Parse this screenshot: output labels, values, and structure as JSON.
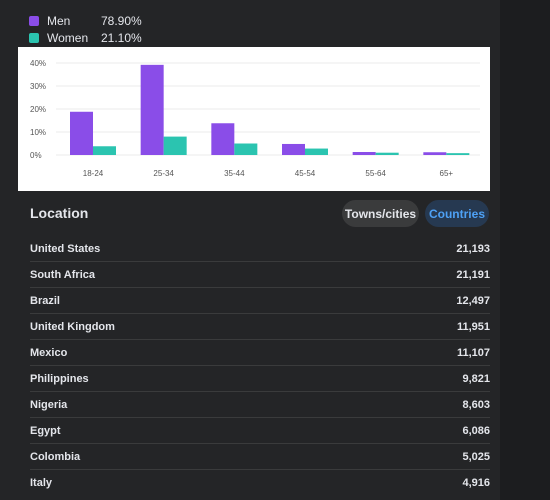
{
  "gender_legend": [
    {
      "label": "Men",
      "value": "78.90%",
      "color": "#8a4de8"
    },
    {
      "label": "Women",
      "value": "21.10%",
      "color": "#2bc4b0"
    }
  ],
  "chart_data": {
    "type": "bar",
    "categories": [
      "18-24",
      "25-34",
      "35-44",
      "45-54",
      "55-64",
      "65+"
    ],
    "series": [
      {
        "name": "Men",
        "color": "#8a4de8",
        "values": [
          18.8,
          39.2,
          13.8,
          4.8,
          1.3,
          1.2
        ]
      },
      {
        "name": "Women",
        "color": "#2bc4b0",
        "values": [
          3.8,
          8.0,
          5.0,
          2.8,
          1.0,
          0.8
        ]
      }
    ],
    "yticks": [
      "0%",
      "10%",
      "20%",
      "30%",
      "40%"
    ],
    "ylim": [
      0,
      40
    ],
    "grid": true
  },
  "location": {
    "title": "Location",
    "tab_towns": "Towns/cities",
    "tab_countries": "Countries",
    "rows": [
      {
        "name": "United States",
        "value": "21,193"
      },
      {
        "name": "South Africa",
        "value": "21,191"
      },
      {
        "name": "Brazil",
        "value": "12,497"
      },
      {
        "name": "United Kingdom",
        "value": "11,951"
      },
      {
        "name": "Mexico",
        "value": "11,107"
      },
      {
        "name": "Philippines",
        "value": "9,821"
      },
      {
        "name": "Nigeria",
        "value": "8,603"
      },
      {
        "name": "Egypt",
        "value": "6,086"
      },
      {
        "name": "Colombia",
        "value": "5,025"
      },
      {
        "name": "Italy",
        "value": "4,916"
      }
    ]
  }
}
